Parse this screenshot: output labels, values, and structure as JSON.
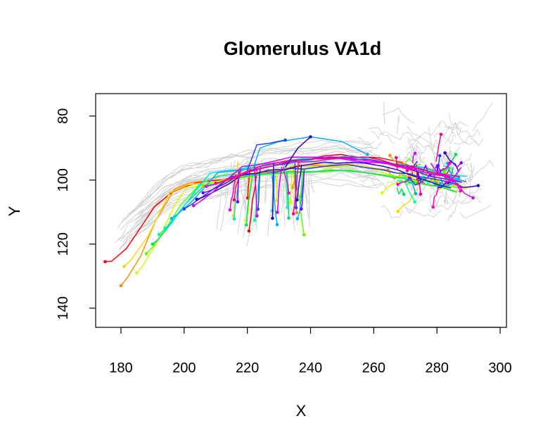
{
  "chart_data": {
    "type": "line",
    "title": "Glomerulus VA1d",
    "xlabel": "X",
    "ylabel": "Y",
    "xlim": [
      172,
      302
    ],
    "ylim": [
      146,
      73
    ],
    "y_axis_inverted": true,
    "xticks": [
      180,
      200,
      220,
      240,
      260,
      280,
      300
    ],
    "yticks": [
      80,
      100,
      120,
      140
    ],
    "grid": false,
    "legend": "none",
    "background_color": "#d3d3d3",
    "highlight_colors": [
      "#ff0000",
      "#ff8c00",
      "#ffd700",
      "#ccff00",
      "#55ff00",
      "#00e060",
      "#00ffaa",
      "#00e5e5",
      "#00b0ff",
      "#2040ff",
      "#3000cc",
      "#8000ff",
      "#d000ff",
      "#ff00cc",
      "#ff0080"
    ],
    "main_tract": {
      "x": [
        176,
        178,
        182,
        188,
        194,
        200,
        210,
        220,
        235,
        250,
        260,
        270,
        278,
        286,
        291
      ],
      "y": [
        127,
        120,
        115,
        110,
        104,
        101,
        99,
        97,
        95,
        94,
        95,
        97,
        99,
        101,
        102
      ]
    }
  }
}
